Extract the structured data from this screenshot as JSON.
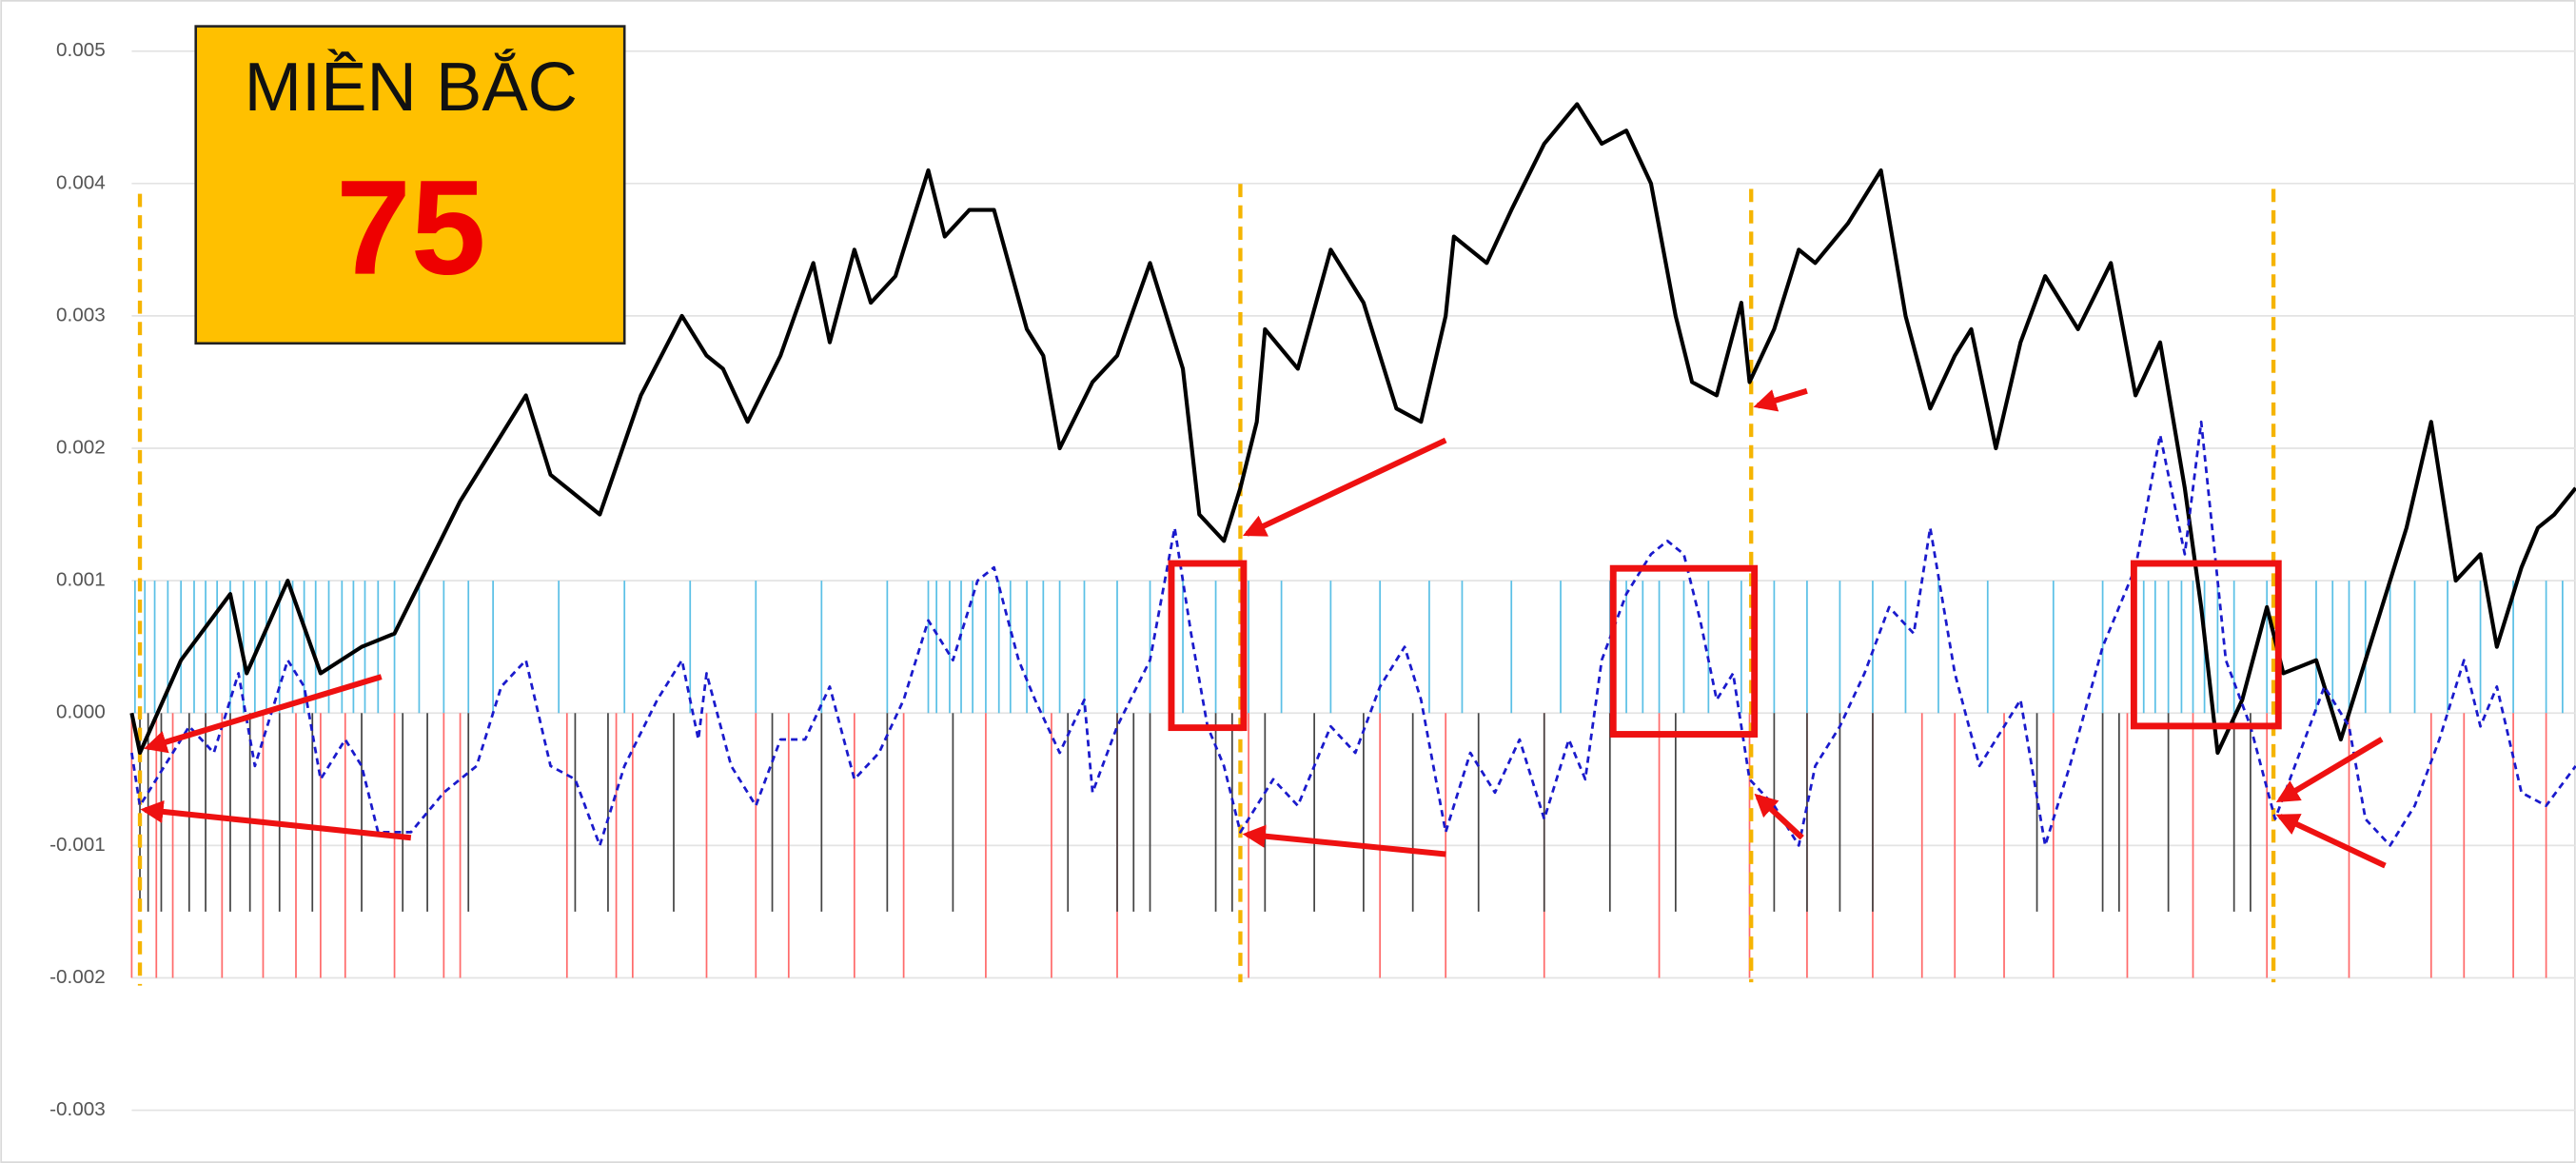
{
  "chart_data": {
    "type": "line",
    "annotations": [
      "MIỀN BẮC",
      "75"
    ],
    "ylim": [
      -0.0032,
      0.0052
    ],
    "yticks": [
      -0.003,
      -0.002,
      -0.001,
      {
        "value": 0,
        "label": "0.000"
      },
      0.001,
      0.002,
      0.003,
      0.004,
      0.005
    ],
    "xlim": [
      0,
      1488
    ],
    "grid": true,
    "series": [
      {
        "kind": "spike",
        "color": "#5bc0e6",
        "x": [
          2,
          8,
          14,
          22,
          30,
          38,
          45,
          52,
          60,
          68,
          75,
          82,
          90,
          98,
          105,
          112,
          120,
          128,
          135,
          142,
          150,
          160,
          175,
          190,
          205,
          220,
          260,
          300,
          340,
          380,
          420,
          460,
          485,
          490,
          498,
          505,
          512,
          520,
          528,
          535,
          545,
          555,
          565,
          580,
          600,
          620,
          640,
          660,
          680,
          700,
          730,
          760,
          790,
          810,
          840,
          870,
          900,
          910,
          920,
          930,
          945,
          960,
          980,
          1000,
          1020,
          1040,
          1060,
          1080,
          1100,
          1130,
          1170,
          1200,
          1225,
          1232,
          1240,
          1248,
          1255,
          1262,
          1270,
          1280,
          1300,
          1330,
          1340,
          1350,
          1360,
          1375,
          1390,
          1410,
          1430,
          1450,
          1470,
          1480
        ],
        "values": [
          0.001,
          0.001,
          0.001,
          0.001,
          0.001,
          0.001,
          0.001,
          0.001,
          0.001,
          0.001,
          0.001,
          0.001,
          0.001,
          0.001,
          0.001,
          0.001,
          0.001,
          0.001,
          0.001,
          0.001,
          0.001,
          0.001,
          0.001,
          0.001,
          0.001,
          0.001,
          0.001,
          0.001,
          0.001,
          0.001,
          0.001,
          0.001,
          0.001,
          0.001,
          0.001,
          0.001,
          0.001,
          0.001,
          0.001,
          0.001,
          0.001,
          0.001,
          0.001,
          0.001,
          0.001,
          0.001,
          0.001,
          0.001,
          0.001,
          0.001,
          0.001,
          0.001,
          0.001,
          0.001,
          0.001,
          0.001,
          0.001,
          0.001,
          0.001,
          0.001,
          0.001,
          0.001,
          0.001,
          0.001,
          0.001,
          0.001,
          0.001,
          0.001,
          0.001,
          0.001,
          0.001,
          0.001,
          0.001,
          0.001,
          0.001,
          0.001,
          0.001,
          0.001,
          0.001,
          0.001,
          0.001,
          0.001,
          0.001,
          0.001,
          0.001,
          0.001,
          0.001,
          0.001,
          0.001,
          0.001,
          0.001,
          0.001
        ]
      },
      {
        "kind": "spike",
        "color": "#ff6b6b",
        "x": [
          0,
          15,
          25,
          55,
          80,
          100,
          115,
          130,
          160,
          190,
          200,
          265,
          295,
          305,
          350,
          380,
          400,
          440,
          470,
          520,
          560,
          600,
          680,
          760,
          800,
          860,
          930,
          985,
          1020,
          1060,
          1090,
          1110,
          1140,
          1170,
          1215,
          1255,
          1300,
          1350,
          1400,
          1420,
          1450,
          1470
        ],
        "values": [
          -0.002,
          -0.002,
          -0.002,
          -0.002,
          -0.002,
          -0.002,
          -0.002,
          -0.002,
          -0.002,
          -0.002,
          -0.002,
          -0.002,
          -0.002,
          -0.002,
          -0.002,
          -0.002,
          -0.002,
          -0.002,
          -0.002,
          -0.002,
          -0.002,
          -0.002,
          -0.002,
          -0.002,
          -0.002,
          -0.002,
          -0.002,
          -0.002,
          -0.002,
          -0.002,
          -0.002,
          -0.002,
          -0.002,
          -0.002,
          -0.002,
          -0.002,
          -0.002,
          -0.002,
          -0.002,
          -0.002,
          -0.002,
          -0.002
        ]
      },
      {
        "kind": "spike",
        "color": "#444444",
        "x": [
          5,
          10,
          18,
          35,
          45,
          60,
          72,
          90,
          110,
          140,
          165,
          180,
          205,
          270,
          290,
          330,
          390,
          420,
          460,
          500,
          570,
          600,
          610,
          620,
          660,
          670,
          690,
          720,
          750,
          780,
          820,
          860,
          900,
          940,
          1000,
          1020,
          1040,
          1060,
          1160,
          1200,
          1210,
          1240,
          1280,
          1290
        ],
        "values": [
          -0.0015,
          -0.0015,
          -0.0015,
          -0.0015,
          -0.0015,
          -0.0015,
          -0.0015,
          -0.0015,
          -0.0015,
          -0.0015,
          -0.0015,
          -0.0015,
          -0.0015,
          -0.0015,
          -0.0015,
          -0.0015,
          -0.0015,
          -0.0015,
          -0.0015,
          -0.0015,
          -0.0015,
          -0.0015,
          -0.0015,
          -0.0015,
          -0.0015,
          -0.0015,
          -0.0015,
          -0.0015,
          -0.0015,
          -0.0015,
          -0.0015,
          -0.0015,
          -0.0015,
          -0.0015,
          -0.0015,
          -0.0015,
          -0.0015,
          -0.0015,
          -0.0015,
          -0.0015,
          -0.0015,
          -0.0015,
          -0.0015,
          -0.0015
        ]
      },
      {
        "kind": "line",
        "color": "#000000",
        "dash": false,
        "x": [
          0,
          5,
          30,
          60,
          70,
          95,
          115,
          140,
          160,
          180,
          200,
          220,
          240,
          255,
          265,
          285,
          310,
          335,
          350,
          360,
          375,
          395,
          415,
          425,
          440,
          450,
          465,
          485,
          495,
          510,
          525,
          545,
          555,
          565,
          585,
          600,
          620,
          640,
          650,
          665,
          675,
          685,
          690,
          710,
          730,
          750,
          770,
          785,
          800,
          805,
          825,
          840,
          860,
          880,
          895,
          910,
          925,
          940,
          950,
          965,
          980,
          985,
          1000,
          1015,
          1025,
          1045,
          1065,
          1080,
          1095,
          1110,
          1120,
          1135,
          1150,
          1165,
          1185,
          1205,
          1220,
          1235,
          1250,
          1260,
          1270,
          1285,
          1300,
          1310,
          1330,
          1345,
          1360,
          1370,
          1385,
          1400,
          1415,
          1430,
          1440,
          1455,
          1465,
          1475,
          1488
        ],
        "values": [
          0,
          -0.0003,
          0.0004,
          0.0009,
          0.0003,
          0.001,
          0.0003,
          0.0005,
          0.0006,
          0.0011,
          0.0016,
          0.002,
          0.0024,
          0.0018,
          0.0017,
          0.0015,
          0.0024,
          0.003,
          0.0027,
          0.0026,
          0.0022,
          0.0027,
          0.0034,
          0.0028,
          0.0035,
          0.0031,
          0.0033,
          0.0041,
          0.0036,
          0.0038,
          0.0038,
          0.0029,
          0.0027,
          0.002,
          0.0025,
          0.0027,
          0.0034,
          0.0026,
          0.0015,
          0.0013,
          0.0017,
          0.0022,
          0.0029,
          0.0026,
          0.0035,
          0.0031,
          0.0023,
          0.0022,
          0.003,
          0.0036,
          0.0034,
          0.0038,
          0.0043,
          0.0046,
          0.0043,
          0.0044,
          0.004,
          0.003,
          0.0025,
          0.0024,
          0.0031,
          0.0025,
          0.0029,
          0.0035,
          0.0034,
          0.0037,
          0.0041,
          0.003,
          0.0023,
          0.0027,
          0.0029,
          0.002,
          0.0028,
          0.0033,
          0.0029,
          0.0034,
          0.0024,
          0.0028,
          0.0017,
          0.0008,
          -0.0003,
          0.0001,
          0.0008,
          0.0003,
          0.0004,
          -0.0002,
          0.0004,
          0.0008,
          0.0014,
          0.0022,
          0.001,
          0.0012,
          0.0005,
          0.0011,
          0.0014,
          0.0015,
          0.0017
        ]
      },
      {
        "kind": "line",
        "color": "#1a1acc",
        "dash": true,
        "x": [
          0,
          5,
          20,
          35,
          50,
          65,
          75,
          95,
          105,
          115,
          130,
          140,
          150,
          170,
          190,
          210,
          225,
          240,
          255,
          270,
          285,
          300,
          320,
          335,
          345,
          350,
          365,
          380,
          395,
          410,
          425,
          440,
          455,
          470,
          485,
          500,
          515,
          525,
          540,
          550,
          565,
          580,
          585,
          600,
          620,
          635,
          645,
          655,
          665,
          675,
          695,
          710,
          730,
          745,
          760,
          775,
          785,
          800,
          815,
          830,
          845,
          860,
          875,
          885,
          895,
          910,
          925,
          935,
          945,
          955,
          965,
          975,
          985,
          1000,
          1015,
          1025,
          1040,
          1055,
          1070,
          1085,
          1095,
          1110,
          1125,
          1140,
          1150,
          1165,
          1180,
          1200,
          1220,
          1235,
          1250,
          1260,
          1275,
          1290,
          1305,
          1320,
          1335,
          1350,
          1360,
          1375,
          1390,
          1405,
          1420,
          1430,
          1440,
          1455,
          1470,
          1488
        ],
        "values": [
          -0.0003,
          -0.0007,
          -0.0004,
          -0.0001,
          -0.0003,
          0.0003,
          -0.0004,
          0.0004,
          0.0002,
          -0.0005,
          -0.0002,
          -0.0004,
          -0.0009,
          -0.0009,
          -0.0006,
          -0.0004,
          0.0002,
          0.0004,
          -0.0004,
          -0.0005,
          -0.001,
          -0.0004,
          0.0001,
          0.0004,
          -0.0002,
          0.0003,
          -0.0004,
          -0.0007,
          -0.0002,
          -0.0002,
          0.0002,
          -0.0005,
          -0.0003,
          0.0001,
          0.0007,
          0.0004,
          0.001,
          0.0011,
          0.0004,
          0.0001,
          -0.0003,
          0.0001,
          -0.0006,
          -0.0001,
          0.0004,
          0.0014,
          0.0006,
          -0.0001,
          -0.0004,
          -0.0009,
          -0.0005,
          -0.0007,
          -0.0001,
          -0.0003,
          0.0002,
          0.0005,
          0.0001,
          -0.0009,
          -0.0003,
          -0.0006,
          -0.0002,
          -0.0008,
          -0.0002,
          -0.0005,
          0.0004,
          0.0009,
          0.0012,
          0.0013,
          0.0012,
          0.0007,
          0.0001,
          0.0003,
          -0.0005,
          -0.0007,
          -0.001,
          -0.0004,
          -0.0001,
          0.0003,
          0.0008,
          0.0006,
          0.0014,
          0.0003,
          -0.0004,
          -0.0001,
          0.0001,
          -0.001,
          -0.0004,
          0.0005,
          0.0011,
          0.0021,
          0.0012,
          0.0022,
          0.0004,
          -0.0001,
          -0.0008,
          -0.0003,
          0.0002,
          -0.0001,
          -0.0008,
          -0.001,
          -0.0007,
          -0.0002,
          0.0004,
          -0.0001,
          0.0002,
          -0.0006,
          -0.0007,
          -0.0004
        ]
      }
    ]
  }
}
